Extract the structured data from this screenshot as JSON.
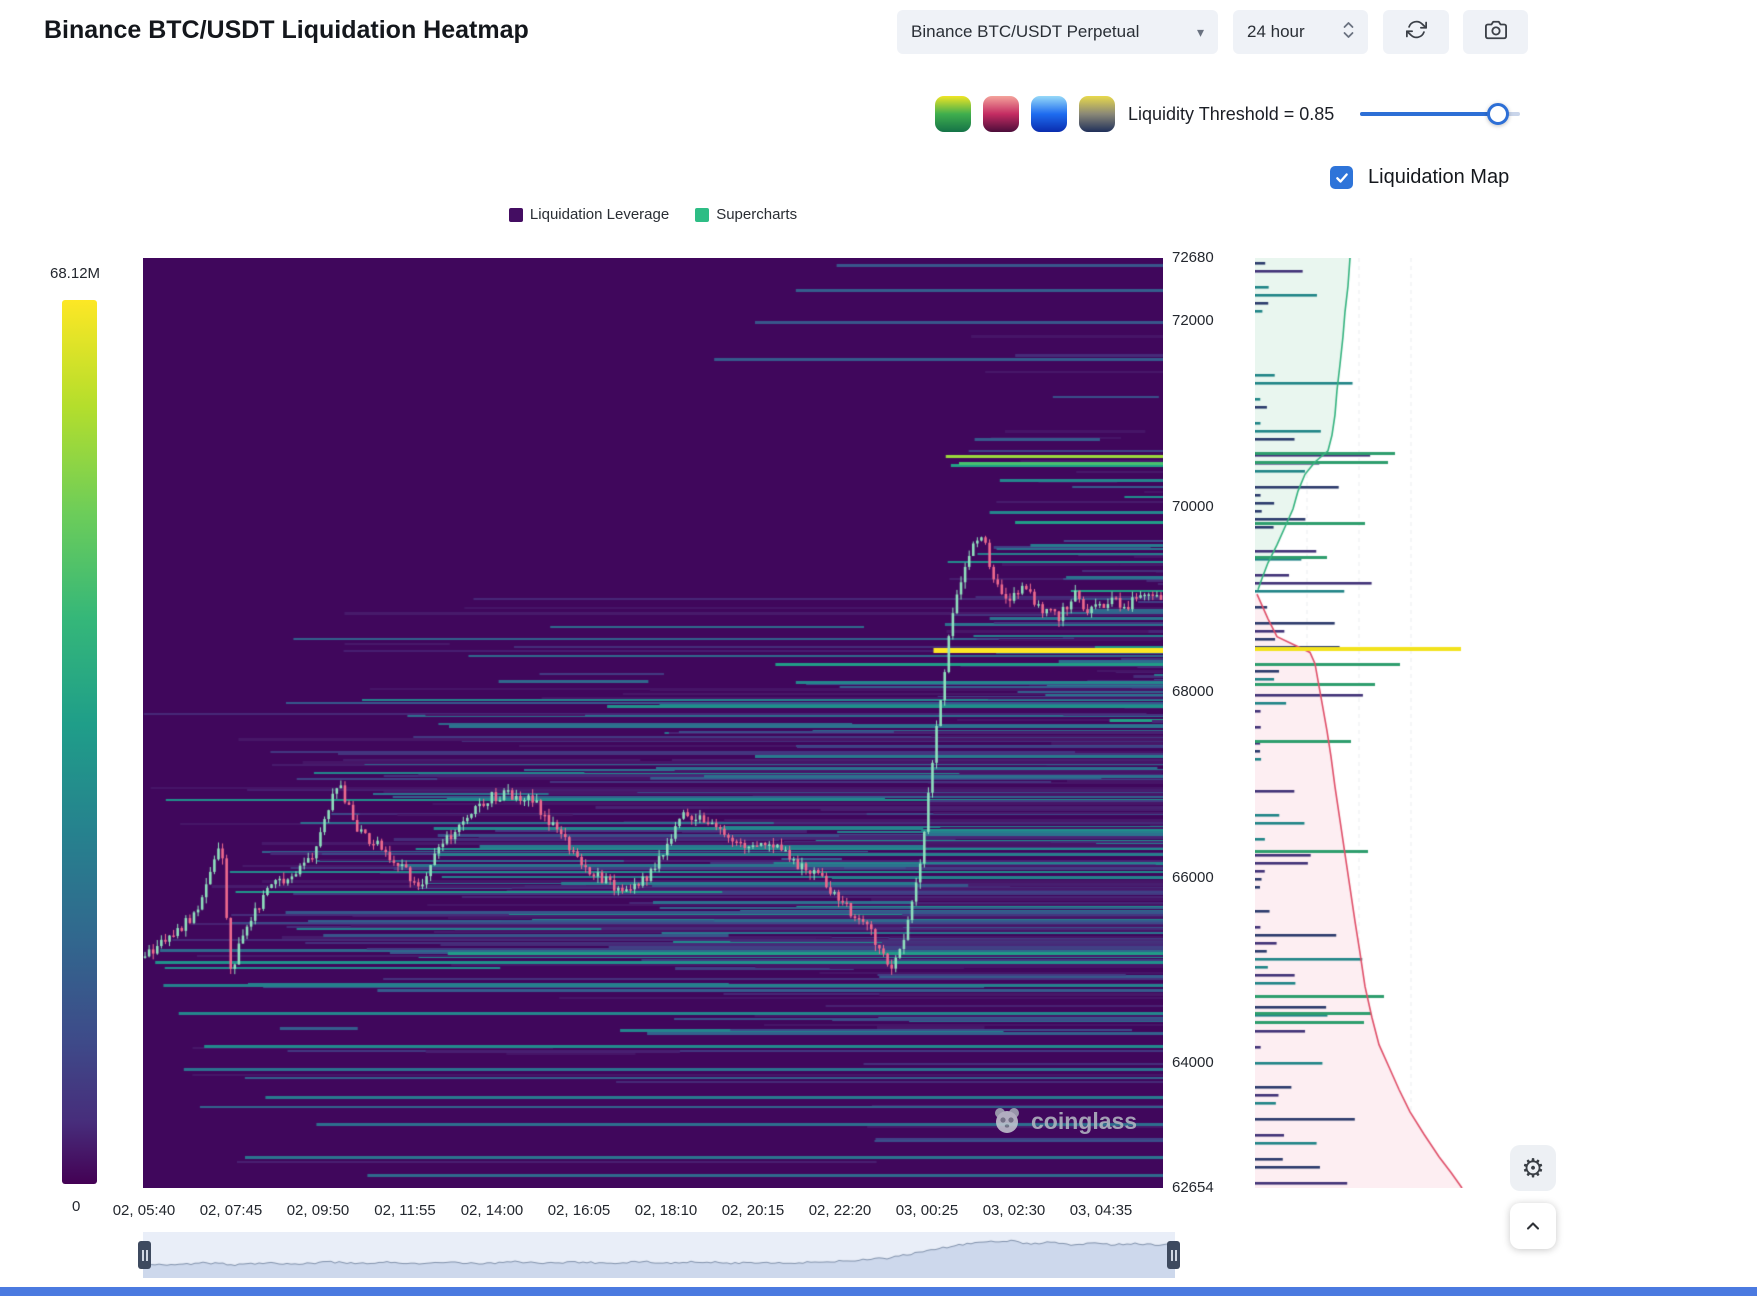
{
  "header": {
    "title": "Binance BTC/USDT Liquidation Heatmap"
  },
  "toolbar": {
    "symbol": "Binance BTC/USDT Perpetual",
    "timeframe": "24 hour"
  },
  "icons": {
    "caret_down": "▾",
    "gear": "⚙"
  },
  "controls": {
    "threshold_label": "Liquidity Threshold = 0.85",
    "threshold_value": 0.85,
    "liquidation_map_label": "Liquidation Map",
    "liquidation_map_checked": true,
    "palettes": [
      {
        "name": "green-yellow",
        "colors": [
          "#f0e524",
          "#3fae4e",
          "#157347"
        ]
      },
      {
        "name": "magma-red",
        "colors": [
          "#f4a39b",
          "#c42c62",
          "#4c0d3a"
        ]
      },
      {
        "name": "ocean-blue",
        "colors": [
          "#96d9f8",
          "#1e6cf0",
          "#0a2cae"
        ]
      },
      {
        "name": "cividis",
        "colors": [
          "#e8d94c",
          "#8a8877",
          "#20305a"
        ]
      }
    ]
  },
  "legend": [
    {
      "label": "Liquidation Leverage",
      "color": "#440d62"
    },
    {
      "label": "Supercharts",
      "color": "#2ebd85"
    }
  ],
  "watermark": "coinglass",
  "chart_data": [
    {
      "id": "liquidation-heatmap",
      "type": "heatmap",
      "title": "Binance BTC/USDT Liquidation Heatmap",
      "background": "#40075c",
      "price_range": [
        62654,
        72680
      ],
      "y_ticks": [
        "72680",
        "72000",
        "70000",
        "68000",
        "66000",
        "64000",
        "62654"
      ],
      "y_tick_values": [
        72680,
        72000,
        70000,
        68000,
        66000,
        64000,
        62654
      ],
      "x_ticks": [
        "02, 05:40",
        "02, 07:45",
        "02, 09:50",
        "02, 11:55",
        "02, 14:00",
        "02, 16:05",
        "02, 18:10",
        "02, 20:15",
        "02, 22:20",
        "03, 00:25",
        "03, 02:30",
        "03, 04:35"
      ],
      "colorbar": {
        "max_label": "68.12M",
        "min_label": "0"
      },
      "candles": {
        "count": 250,
        "up": "#8fe0bd",
        "down": "#ef6a8e"
      },
      "price_path": [
        [
          0,
          65150
        ],
        [
          0.02,
          65350
        ],
        [
          0.05,
          65600
        ],
        [
          0.062,
          66050
        ],
        [
          0.075,
          66350
        ],
        [
          0.085,
          64980
        ],
        [
          0.1,
          65500
        ],
        [
          0.12,
          65850
        ],
        [
          0.14,
          66000
        ],
        [
          0.165,
          66250
        ],
        [
          0.19,
          67050
        ],
        [
          0.21,
          66500
        ],
        [
          0.24,
          66250
        ],
        [
          0.27,
          65900
        ],
        [
          0.29,
          66300
        ],
        [
          0.31,
          66600
        ],
        [
          0.335,
          66850
        ],
        [
          0.36,
          66900
        ],
        [
          0.385,
          66800
        ],
        [
          0.41,
          66450
        ],
        [
          0.44,
          66050
        ],
        [
          0.47,
          65850
        ],
        [
          0.5,
          66050
        ],
        [
          0.53,
          66700
        ],
        [
          0.56,
          66550
        ],
        [
          0.59,
          66300
        ],
        [
          0.615,
          66400
        ],
        [
          0.64,
          66150
        ],
        [
          0.665,
          66000
        ],
        [
          0.69,
          65700
        ],
        [
          0.715,
          65400
        ],
        [
          0.735,
          65050
        ],
        [
          0.75,
          65450
        ],
        [
          0.765,
          66300
        ],
        [
          0.778,
          67500
        ],
        [
          0.79,
          68500
        ],
        [
          0.8,
          69150
        ],
        [
          0.815,
          69550
        ],
        [
          0.822,
          69780
        ],
        [
          0.835,
          69250
        ],
        [
          0.85,
          68950
        ],
        [
          0.865,
          69150
        ],
        [
          0.88,
          68900
        ],
        [
          0.9,
          68800
        ],
        [
          0.915,
          69050
        ],
        [
          0.93,
          68850
        ],
        [
          0.95,
          69000
        ],
        [
          0.965,
          68900
        ],
        [
          0.98,
          69050
        ],
        [
          1,
          68980
        ]
      ],
      "key_levels": [
        {
          "price": 68470,
          "start": 0.775,
          "end": 1,
          "intensity": 1
        },
        {
          "price": 68310,
          "start": 0.62,
          "end": 1,
          "intensity": 0.6
        },
        {
          "price": 68120,
          "start": 0.64,
          "end": 1,
          "intensity": 0.5
        },
        {
          "price": 67860,
          "start": 0.455,
          "end": 1,
          "intensity": 0.55
        },
        {
          "price": 67650,
          "start": 0.3,
          "end": 1,
          "intensity": 0.42
        },
        {
          "price": 67320,
          "start": 0.6,
          "end": 1,
          "intensity": 0.45
        },
        {
          "price": 67110,
          "start": 0.55,
          "end": 1,
          "intensity": 0.4
        },
        {
          "price": 70560,
          "start": 0.787,
          "end": 1,
          "intensity": 0.88
        },
        {
          "price": 70480,
          "start": 0.8,
          "end": 1,
          "intensity": 0.75
        },
        {
          "price": 70300,
          "start": 0.84,
          "end": 1,
          "intensity": 0.5
        },
        {
          "price": 69950,
          "start": 0.83,
          "end": 1,
          "intensity": 0.5
        },
        {
          "price": 69850,
          "start": 0.855,
          "end": 1,
          "intensity": 0.6
        },
        {
          "price": 69600,
          "start": 0.87,
          "end": 1,
          "intensity": 0.45
        },
        {
          "price": 69250,
          "start": 0.905,
          "end": 1,
          "intensity": 0.42
        },
        {
          "price": 68900,
          "start": 0.925,
          "end": 1,
          "intensity": 0.38
        },
        {
          "price": 66550,
          "start": 0.285,
          "end": 0.765,
          "intensity": 0.5
        },
        {
          "price": 66350,
          "start": 0.33,
          "end": 0.765,
          "intensity": 0.45
        },
        {
          "price": 66150,
          "start": 0.25,
          "end": 0.762,
          "intensity": 0.42
        },
        {
          "price": 65950,
          "start": 0.41,
          "end": 0.758,
          "intensity": 0.45
        },
        {
          "price": 65750,
          "start": 0.5,
          "end": 0.755,
          "intensity": 0.4
        },
        {
          "price": 65550,
          "start": 0.56,
          "end": 0.752,
          "intensity": 0.38
        },
        {
          "price": 65100,
          "start": 0.012,
          "end": 1,
          "intensity": 0.55
        },
        {
          "price": 64850,
          "start": 0.02,
          "end": 1,
          "intensity": 0.48
        },
        {
          "price": 64550,
          "start": 0.035,
          "end": 1,
          "intensity": 0.5
        },
        {
          "price": 64200,
          "start": 0.06,
          "end": 1,
          "intensity": 0.52
        },
        {
          "price": 63950,
          "start": 0.04,
          "end": 1,
          "intensity": 0.42
        },
        {
          "price": 63650,
          "start": 0.12,
          "end": 1,
          "intensity": 0.45
        },
        {
          "price": 63350,
          "start": 0.17,
          "end": 1,
          "intensity": 0.4
        },
        {
          "price": 63000,
          "start": 0.1,
          "end": 1,
          "intensity": 0.42
        },
        {
          "price": 62800,
          "start": 0.22,
          "end": 1,
          "intensity": 0.38
        },
        {
          "price": 71600,
          "start": 0.56,
          "end": 1,
          "intensity": 0.32
        },
        {
          "price": 72000,
          "start": 0.6,
          "end": 1,
          "intensity": 0.3
        },
        {
          "price": 72350,
          "start": 0.64,
          "end": 1,
          "intensity": 0.33
        },
        {
          "price": 72620,
          "start": 0.68,
          "end": 1,
          "intensity": 0.3
        }
      ]
    },
    {
      "id": "liquidation-depth",
      "type": "depth",
      "ask_fill": "#e9f6ef",
      "ask_line": "#35b37f",
      "bid_fill": "#fdeef2",
      "bid_line": "#e0506a",
      "green_bar_color": "#2f9e6e",
      "bar_colors": [
        "#413277",
        "#1f8486",
        "#2b3a6b"
      ],
      "ask_curve": [
        [
          95,
          72680
        ],
        [
          93,
          72378
        ],
        [
          90,
          72100
        ],
        [
          88,
          71834
        ],
        [
          85,
          71532
        ],
        [
          82,
          71254
        ],
        [
          80,
          70989
        ],
        [
          77,
          70771
        ],
        [
          73,
          70602
        ],
        [
          60,
          70481
        ],
        [
          50,
          70348
        ],
        [
          43,
          70167
        ],
        [
          38,
          69974
        ],
        [
          30,
          69780
        ],
        [
          22,
          69587
        ],
        [
          13,
          69394
        ],
        [
          7,
          69225
        ],
        [
          3,
          69104
        ]
      ],
      "bid_curve": [
        [
          2,
          69056
        ],
        [
          8,
          68911
        ],
        [
          13,
          68790
        ],
        [
          22,
          68597
        ],
        [
          55,
          68428
        ],
        [
          60,
          68307
        ],
        [
          64,
          68065
        ],
        [
          68,
          67824
        ],
        [
          72,
          67582
        ],
        [
          76,
          67304
        ],
        [
          80,
          66978
        ],
        [
          85,
          66616
        ],
        [
          90,
          66253
        ],
        [
          95,
          65891
        ],
        [
          100,
          65528
        ],
        [
          105,
          65190
        ],
        [
          110,
          64827
        ],
        [
          117,
          64489
        ],
        [
          124,
          64199
        ],
        [
          134,
          63958
        ],
        [
          144,
          63716
        ],
        [
          155,
          63474
        ],
        [
          169,
          63233
        ],
        [
          184,
          62991
        ],
        [
          196,
          62822
        ],
        [
          207,
          62654
        ]
      ],
      "green_bars": [
        [
          70590,
          140
        ],
        [
          70494,
          133
        ],
        [
          69829,
          110
        ],
        [
          69467,
          72
        ],
        [
          68319,
          145
        ],
        [
          68102,
          120
        ],
        [
          67486,
          96
        ],
        [
          66302,
          113
        ],
        [
          64731,
          129
        ],
        [
          64550,
          116
        ],
        [
          64453,
          109
        ]
      ],
      "highlight_bar": {
        "price": 68470,
        "len": 206,
        "color": "#f2e21c"
      }
    },
    {
      "id": "navigator",
      "type": "area",
      "fill": "#cdd8ec",
      "line": "#8192ac",
      "background": "#e9eef8",
      "profile": [
        [
          0,
          0.3
        ],
        [
          0.03,
          0.26
        ],
        [
          0.06,
          0.32
        ],
        [
          0.09,
          0.27
        ],
        [
          0.12,
          0.33
        ],
        [
          0.15,
          0.28
        ],
        [
          0.18,
          0.34
        ],
        [
          0.21,
          0.3
        ],
        [
          0.24,
          0.34
        ],
        [
          0.27,
          0.29
        ],
        [
          0.3,
          0.33
        ],
        [
          0.33,
          0.3
        ],
        [
          0.36,
          0.35
        ],
        [
          0.39,
          0.31
        ],
        [
          0.42,
          0.34
        ],
        [
          0.45,
          0.31
        ],
        [
          0.48,
          0.35
        ],
        [
          0.51,
          0.32
        ],
        [
          0.54,
          0.35
        ],
        [
          0.57,
          0.31
        ],
        [
          0.6,
          0.34
        ],
        [
          0.63,
          0.31
        ],
        [
          0.66,
          0.35
        ],
        [
          0.69,
          0.38
        ],
        [
          0.72,
          0.44
        ],
        [
          0.75,
          0.58
        ],
        [
          0.78,
          0.74
        ],
        [
          0.81,
          0.86
        ],
        [
          0.84,
          0.9
        ],
        [
          0.86,
          0.82
        ],
        [
          0.88,
          0.86
        ],
        [
          0.9,
          0.8
        ],
        [
          0.92,
          0.84
        ],
        [
          0.94,
          0.8
        ],
        [
          0.96,
          0.83
        ],
        [
          0.98,
          0.79
        ],
        [
          1,
          0.81
        ]
      ]
    }
  ]
}
